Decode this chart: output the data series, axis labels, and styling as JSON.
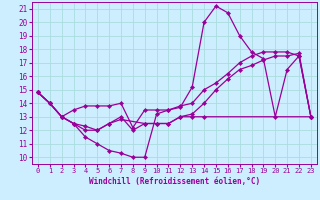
{
  "xlabel": "Windchill (Refroidissement éolien,°C)",
  "bg_color": "#cceeff",
  "grid_color": "#aadddd",
  "line_color": "#990099",
  "xlim": [
    -0.5,
    23.5
  ],
  "ylim": [
    9.5,
    21.5
  ],
  "yticks": [
    10,
    11,
    12,
    13,
    14,
    15,
    16,
    17,
    18,
    19,
    20,
    21
  ],
  "xticks": [
    0,
    1,
    2,
    3,
    4,
    5,
    6,
    7,
    8,
    9,
    10,
    11,
    12,
    13,
    14,
    15,
    16,
    17,
    18,
    19,
    20,
    21,
    22,
    23
  ],
  "line1_x": [
    0,
    1,
    2,
    3,
    4,
    5,
    6,
    7,
    8,
    9,
    10,
    11,
    12,
    13,
    14,
    15,
    16,
    17,
    18,
    19,
    20,
    21,
    22,
    23
  ],
  "line1_y": [
    14.8,
    14.0,
    13.0,
    12.5,
    11.5,
    11.0,
    10.5,
    10.3,
    10.0,
    10.0,
    13.2,
    13.5,
    13.7,
    15.2,
    20.0,
    21.2,
    20.7,
    19.0,
    17.8,
    17.3,
    13.0,
    16.5,
    17.5,
    13.0
  ],
  "line2_x": [
    0,
    1,
    2,
    3,
    4,
    5,
    6,
    7,
    8,
    9,
    10,
    11,
    12,
    13,
    14,
    15,
    16,
    17,
    18,
    19,
    20,
    21,
    22,
    23
  ],
  "line2_y": [
    14.8,
    14.0,
    13.0,
    13.5,
    13.8,
    13.8,
    13.8,
    14.0,
    12.2,
    13.5,
    13.5,
    13.5,
    13.8,
    14.0,
    15.0,
    15.5,
    16.2,
    17.0,
    17.5,
    17.8,
    17.8,
    17.8,
    17.5,
    13.0
  ],
  "line3_x": [
    0,
    1,
    2,
    3,
    4,
    5,
    6,
    7,
    8,
    9,
    10,
    11,
    12,
    13,
    14,
    15,
    16,
    17,
    18,
    19,
    20,
    21,
    22,
    23
  ],
  "line3_y": [
    14.8,
    14.0,
    13.0,
    12.5,
    12.0,
    12.0,
    12.5,
    13.0,
    12.0,
    12.5,
    12.5,
    12.5,
    13.0,
    13.2,
    14.0,
    15.0,
    15.8,
    16.5,
    16.8,
    17.2,
    17.5,
    17.5,
    17.7,
    13.0
  ],
  "line4_x": [
    0,
    1,
    2,
    3,
    4,
    5,
    6,
    7,
    9,
    10,
    11,
    12,
    13,
    14,
    23
  ],
  "line4_y": [
    14.8,
    14.0,
    13.0,
    12.5,
    12.3,
    12.0,
    12.5,
    12.8,
    12.5,
    12.5,
    12.5,
    13.0,
    13.0,
    13.0,
    13.0
  ]
}
